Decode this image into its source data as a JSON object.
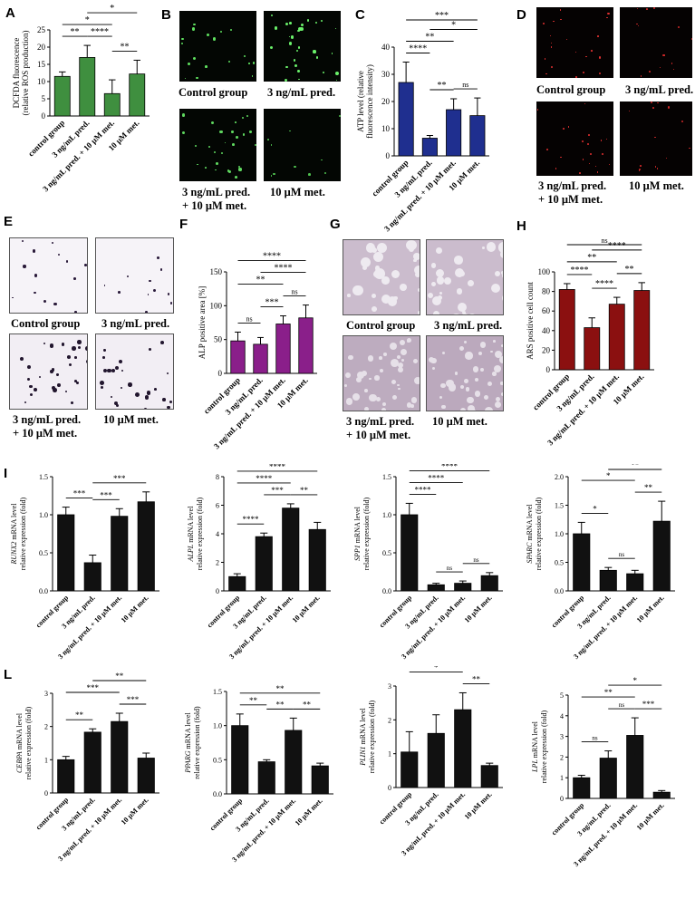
{
  "panel_letters": {
    "A": "A",
    "B": "B",
    "C": "C",
    "D": "D",
    "E": "E",
    "F": "F",
    "G": "G",
    "H": "H",
    "I": "I",
    "L": "L"
  },
  "groups": [
    "control group",
    "3 ng/mL pred.",
    "3 ng/mL pred. + 10 μM met.",
    "10 μM met."
  ],
  "colors": {
    "green": "#3f8f3f",
    "navy": "#1f2f8f",
    "purple": "#8a1f8a",
    "darkred": "#8b1010",
    "black": "#111111"
  },
  "micro_captions": {
    "B": [
      "Control group",
      "3 ng/mL pred.",
      "3 ng/mL pred.\n+ 10 μM met.",
      "10 μM met."
    ],
    "D": [
      "Control group",
      "3 ng/mL pred.",
      "3 ng/mL pred.\n+ 10 μM met.",
      "10 μM met."
    ],
    "E": [
      "Control group",
      "3 ng/mL pred.",
      "3 ng/mL pred.\n+ 10 μM met.",
      "10 μM met."
    ],
    "G": [
      "Control group",
      "3 ng/mL pred.",
      "3 ng/mL pred.\n+ 10 μM met.",
      "10 μM met."
    ]
  },
  "chart_data": [
    {
      "id": "A",
      "type": "bar",
      "color": "green",
      "ylabel": "DCFDA fluorescence\n(relative ROS production)",
      "ylim": [
        0,
        25
      ],
      "ticks": [
        0,
        5,
        10,
        15,
        20,
        25
      ],
      "values": [
        11.5,
        17,
        6.5,
        12.2
      ],
      "errors": [
        1.3,
        3.5,
        4,
        4
      ],
      "sig": [
        {
          "i": 0,
          "j": 1,
          "label": "**"
        },
        {
          "i": 1,
          "j": 2,
          "label": "****"
        },
        {
          "i": 2,
          "j": 3,
          "label": "**"
        },
        {
          "i": 0,
          "j": 2,
          "label": "*"
        },
        {
          "i": 1,
          "j": 3,
          "label": "*"
        }
      ]
    },
    {
      "id": "C",
      "type": "bar",
      "color": "navy",
      "ylabel": "ATP level (relative\nfluorescence intensity)",
      "ylim": [
        0,
        40
      ],
      "ticks": [
        0,
        10,
        20,
        30,
        40
      ],
      "values": [
        27,
        6.5,
        17,
        14.8
      ],
      "errors": [
        7.5,
        1,
        4,
        6.5
      ],
      "sig": [
        {
          "i": 0,
          "j": 1,
          "label": "****"
        },
        {
          "i": 1,
          "j": 2,
          "label": "**"
        },
        {
          "i": 2,
          "j": 3,
          "label": "ns"
        },
        {
          "i": 0,
          "j": 2,
          "label": "**"
        },
        {
          "i": 1,
          "j": 3,
          "label": "*"
        },
        {
          "i": 0,
          "j": 3,
          "label": "***"
        }
      ]
    },
    {
      "id": "F",
      "type": "bar",
      "color": "purple",
      "ylabel": "ALP positive area [%]",
      "ylim": [
        0,
        150
      ],
      "ticks": [
        0,
        50,
        100,
        150
      ],
      "values": [
        48,
        43,
        73,
        82
      ],
      "errors": [
        13,
        10,
        12,
        19
      ],
      "sig": [
        {
          "i": 0,
          "j": 1,
          "label": "ns"
        },
        {
          "i": 1,
          "j": 2,
          "label": "***"
        },
        {
          "i": 2,
          "j": 3,
          "label": "ns"
        },
        {
          "i": 0,
          "j": 2,
          "label": "**"
        },
        {
          "i": 1,
          "j": 3,
          "label": "****"
        },
        {
          "i": 0,
          "j": 3,
          "label": "****"
        }
      ]
    },
    {
      "id": "H",
      "type": "bar",
      "color": "darkred",
      "ylabel": "ARS positive cell count",
      "ylim": [
        0,
        100
      ],
      "ticks": [
        0,
        20,
        40,
        60,
        80,
        100
      ],
      "values": [
        82,
        43,
        67,
        81
      ],
      "errors": [
        6,
        10,
        7,
        8
      ],
      "sig": [
        {
          "i": 0,
          "j": 1,
          "label": "****"
        },
        {
          "i": 1,
          "j": 2,
          "label": "****"
        },
        {
          "i": 2,
          "j": 3,
          "label": "**"
        },
        {
          "i": 0,
          "j": 2,
          "label": "**"
        },
        {
          "i": 1,
          "j": 3,
          "label": "****"
        },
        {
          "i": 0,
          "j": 3,
          "label": "ns"
        }
      ]
    },
    {
      "id": "I1",
      "type": "bar",
      "color": "black",
      "gene": "RUNX2",
      "ylabel2": "relative expression (fold)",
      "ylim": [
        0,
        1.5
      ],
      "ticks": [
        0.0,
        0.5,
        1.0,
        1.5
      ],
      "tickfmt": 1,
      "values": [
        1.0,
        0.37,
        0.98,
        1.17
      ],
      "errors": [
        0.1,
        0.1,
        0.1,
        0.13
      ],
      "sig": [
        {
          "i": 0,
          "j": 1,
          "label": "***"
        },
        {
          "i": 1,
          "j": 2,
          "label": "***"
        },
        {
          "i": 1,
          "j": 3,
          "label": "***"
        }
      ]
    },
    {
      "id": "I2",
      "type": "bar",
      "color": "black",
      "gene": "ALPL",
      "ylabel2": "relative expression (fold)",
      "ylim": [
        0,
        8
      ],
      "ticks": [
        0,
        2,
        4,
        6,
        8
      ],
      "values": [
        1.0,
        3.8,
        5.8,
        4.3
      ],
      "errors": [
        0.2,
        0.25,
        0.3,
        0.5
      ],
      "sig": [
        {
          "i": 0,
          "j": 1,
          "label": "****"
        },
        {
          "i": 1,
          "j": 2,
          "label": "***"
        },
        {
          "i": 2,
          "j": 3,
          "label": "**"
        },
        {
          "i": 0,
          "j": 2,
          "label": "****"
        },
        {
          "i": 0,
          "j": 3,
          "label": "****"
        }
      ]
    },
    {
      "id": "I3",
      "type": "bar",
      "color": "black",
      "gene": "SPP1",
      "ylabel2": "relative expression (fold)",
      "ylim": [
        0,
        1.5
      ],
      "ticks": [
        0.0,
        0.5,
        1.0,
        1.5
      ],
      "tickfmt": 1,
      "values": [
        1.0,
        0.08,
        0.1,
        0.2
      ],
      "errors": [
        0.15,
        0.02,
        0.03,
        0.04
      ],
      "sig": [
        {
          "i": 0,
          "j": 1,
          "label": "****"
        },
        {
          "i": 1,
          "j": 2,
          "label": "ns"
        },
        {
          "i": 2,
          "j": 3,
          "label": "ns"
        },
        {
          "i": 0,
          "j": 2,
          "label": "****"
        },
        {
          "i": 0,
          "j": 3,
          "label": "****"
        }
      ]
    },
    {
      "id": "I4",
      "type": "bar",
      "color": "black",
      "gene": "SPARC",
      "ylabel2": "relative expression (fold)",
      "ylim": [
        0,
        2.0
      ],
      "ticks": [
        0.0,
        0.5,
        1.0,
        1.5,
        2.0
      ],
      "tickfmt": 1,
      "values": [
        1.0,
        0.36,
        0.3,
        1.22
      ],
      "errors": [
        0.2,
        0.05,
        0.06,
        0.35
      ],
      "sig": [
        {
          "i": 0,
          "j": 1,
          "label": "*"
        },
        {
          "i": 1,
          "j": 2,
          "label": "ns"
        },
        {
          "i": 2,
          "j": 3,
          "label": "**"
        },
        {
          "i": 0,
          "j": 2,
          "label": "*"
        },
        {
          "i": 1,
          "j": 3,
          "label": "**"
        }
      ]
    },
    {
      "id": "L1",
      "type": "bar",
      "color": "black",
      "gene": "CEBPA",
      "ylabel2": "relative expression (fold)",
      "ylim": [
        0,
        3
      ],
      "ticks": [
        0,
        1,
        2,
        3
      ],
      "values": [
        1.0,
        1.83,
        2.15,
        1.05
      ],
      "errors": [
        0.1,
        0.1,
        0.25,
        0.15
      ],
      "sig": [
        {
          "i": 0,
          "j": 1,
          "label": "**"
        },
        {
          "i": 2,
          "j": 3,
          "label": "***"
        },
        {
          "i": 0,
          "j": 2,
          "label": "***"
        },
        {
          "i": 1,
          "j": 3,
          "label": "**"
        }
      ]
    },
    {
      "id": "L2",
      "type": "bar",
      "color": "black",
      "gene": "PPARG",
      "ylabel2": "relative expression (fold)",
      "ylim": [
        0,
        1.5
      ],
      "ticks": [
        0.0,
        0.5,
        1.0,
        1.5
      ],
      "tickfmt": 1,
      "values": [
        1.0,
        0.47,
        0.93,
        0.41
      ],
      "errors": [
        0.17,
        0.03,
        0.18,
        0.04
      ],
      "sig": [
        {
          "i": 0,
          "j": 1,
          "label": "**"
        },
        {
          "i": 1,
          "j": 2,
          "label": "**"
        },
        {
          "i": 2,
          "j": 3,
          "label": "**"
        },
        {
          "i": 0,
          "j": 3,
          "label": "**"
        }
      ]
    },
    {
      "id": "L3",
      "type": "bar",
      "color": "black",
      "gene": "PLIN1",
      "ylabel2": "relative expression (fold)",
      "ylim": [
        0,
        3
      ],
      "ticks": [
        0,
        1,
        2,
        3
      ],
      "values": [
        1.05,
        1.6,
        2.3,
        0.65
      ],
      "errors": [
        0.6,
        0.55,
        0.5,
        0.07
      ],
      "sig": [
        {
          "i": 2,
          "j": 3,
          "label": "**"
        },
        {
          "i": 0,
          "j": 2,
          "label": "*"
        }
      ]
    },
    {
      "id": "L4",
      "type": "bar",
      "color": "black",
      "gene": "LPL",
      "ylabel2": "relative expression (fold)",
      "ylim": [
        0,
        5
      ],
      "ticks": [
        0,
        1,
        2,
        3,
        4,
        5
      ],
      "values": [
        1.0,
        1.95,
        3.05,
        0.3
      ],
      "errors": [
        0.12,
        0.35,
        0.85,
        0.08
      ],
      "sig": [
        {
          "i": 0,
          "j": 1,
          "label": "ns"
        },
        {
          "i": 1,
          "j": 2,
          "label": "ns"
        },
        {
          "i": 2,
          "j": 3,
          "label": "***"
        },
        {
          "i": 0,
          "j": 2,
          "label": "**"
        },
        {
          "i": 1,
          "j": 3,
          "label": "*"
        }
      ]
    }
  ]
}
